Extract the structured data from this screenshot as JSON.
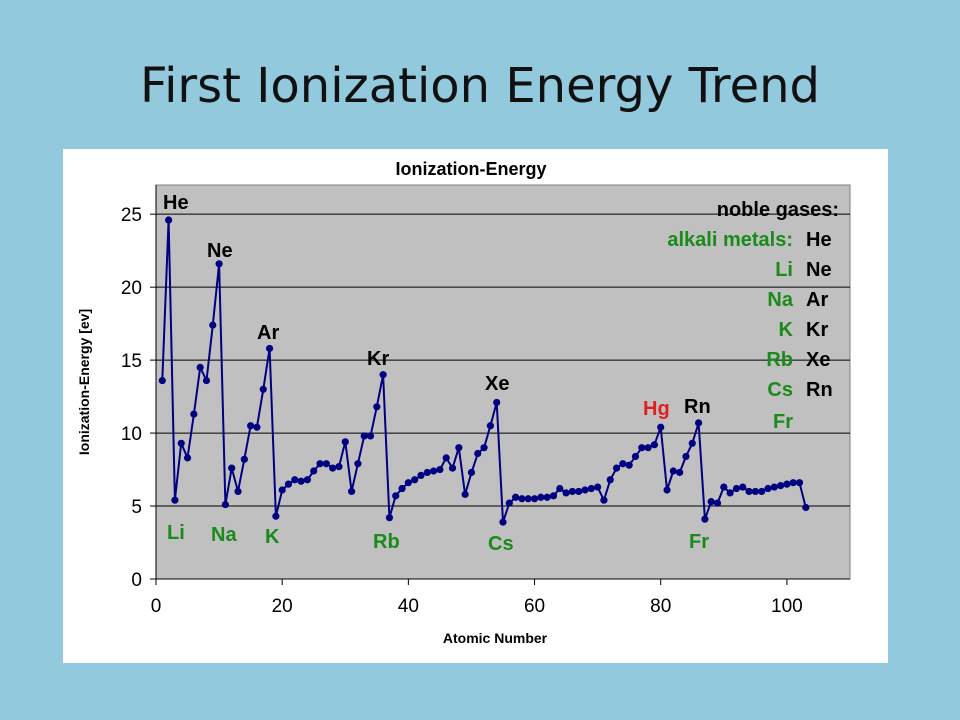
{
  "slide": {
    "title": "First Ionization Energy Trend"
  },
  "colors": {
    "background": "#92c9dd",
    "plot_bg": "#c0c0c0",
    "series": "#000080",
    "alkali": "#1a8a1a",
    "noble": "#000000",
    "mercury": "#e02020"
  },
  "chart_data": {
    "type": "line",
    "title": "Ionization-Energy",
    "xlabel": "Atomic Number",
    "ylabel": "Ionization-Energy [ev]",
    "xlim": [
      0,
      110
    ],
    "ylim": [
      0,
      27
    ],
    "xticks": [
      0,
      20,
      40,
      60,
      80,
      100
    ],
    "yticks": [
      0,
      5,
      10,
      15,
      20,
      25
    ],
    "grid": "horizontal",
    "x": [
      1,
      2,
      3,
      4,
      5,
      6,
      7,
      8,
      9,
      10,
      11,
      12,
      13,
      14,
      15,
      16,
      17,
      18,
      19,
      20,
      21,
      22,
      23,
      24,
      25,
      26,
      27,
      28,
      29,
      30,
      31,
      32,
      33,
      34,
      35,
      36,
      37,
      38,
      39,
      40,
      41,
      42,
      43,
      44,
      45,
      46,
      47,
      48,
      49,
      50,
      51,
      52,
      53,
      54,
      55,
      56,
      57,
      58,
      59,
      60,
      61,
      62,
      63,
      64,
      65,
      66,
      67,
      68,
      69,
      70,
      71,
      72,
      73,
      74,
      75,
      76,
      77,
      78,
      79,
      80,
      81,
      82,
      83,
      84,
      85,
      86,
      87,
      88,
      89,
      90,
      91,
      92,
      93,
      94,
      95,
      96,
      97,
      98,
      99,
      100,
      101,
      102,
      103
    ],
    "y": [
      13.6,
      24.6,
      5.4,
      9.3,
      8.3,
      11.3,
      14.5,
      13.6,
      17.4,
      21.6,
      5.1,
      7.6,
      6.0,
      8.2,
      10.5,
      10.4,
      13.0,
      15.8,
      4.3,
      6.1,
      6.5,
      6.8,
      6.7,
      6.8,
      7.4,
      7.9,
      7.9,
      7.6,
      7.7,
      9.4,
      6.0,
      7.9,
      9.8,
      9.8,
      11.8,
      14.0,
      4.2,
      5.7,
      6.2,
      6.6,
      6.8,
      7.1,
      7.3,
      7.4,
      7.5,
      8.3,
      7.6,
      9.0,
      5.8,
      7.3,
      8.6,
      9.0,
      10.5,
      12.1,
      3.9,
      5.2,
      5.6,
      5.5,
      5.5,
      5.5,
      5.6,
      5.6,
      5.7,
      6.2,
      5.9,
      6.0,
      6.0,
      6.1,
      6.2,
      6.3,
      5.4,
      6.8,
      7.6,
      7.9,
      7.8,
      8.4,
      9.0,
      9.0,
      9.2,
      10.4,
      6.1,
      7.4,
      7.3,
      8.4,
      9.3,
      10.7,
      4.1,
      5.3,
      5.2,
      6.3,
      5.9,
      6.2,
      6.3,
      6.0,
      6.0,
      6.0,
      6.2,
      6.3,
      6.4,
      6.5,
      6.6,
      6.6,
      4.9
    ],
    "point_labels": [
      {
        "text": "He",
        "group": "noble"
      },
      {
        "text": "Ne",
        "group": "noble"
      },
      {
        "text": "Ar",
        "group": "noble"
      },
      {
        "text": "Kr",
        "group": "noble"
      },
      {
        "text": "Xe",
        "group": "noble"
      },
      {
        "text": "Rn",
        "group": "noble"
      },
      {
        "text": "Hg",
        "group": "mercury"
      },
      {
        "text": "Li",
        "group": "alkali"
      },
      {
        "text": "Na",
        "group": "alkali"
      },
      {
        "text": "K",
        "group": "alkali"
      },
      {
        "text": "Rb",
        "group": "alkali"
      },
      {
        "text": "Cs",
        "group": "alkali"
      },
      {
        "text": "Fr",
        "group": "alkali"
      }
    ],
    "legend": {
      "placement": "top-right",
      "noble_header": "noble gases:",
      "alkali_header": "alkali metals:",
      "noble": [
        "He",
        "Ne",
        "Ar",
        "Kr",
        "Xe",
        "Rn"
      ],
      "alkali": [
        "Li",
        "Na",
        "K",
        "Rb",
        "Cs",
        "Fr"
      ]
    }
  }
}
